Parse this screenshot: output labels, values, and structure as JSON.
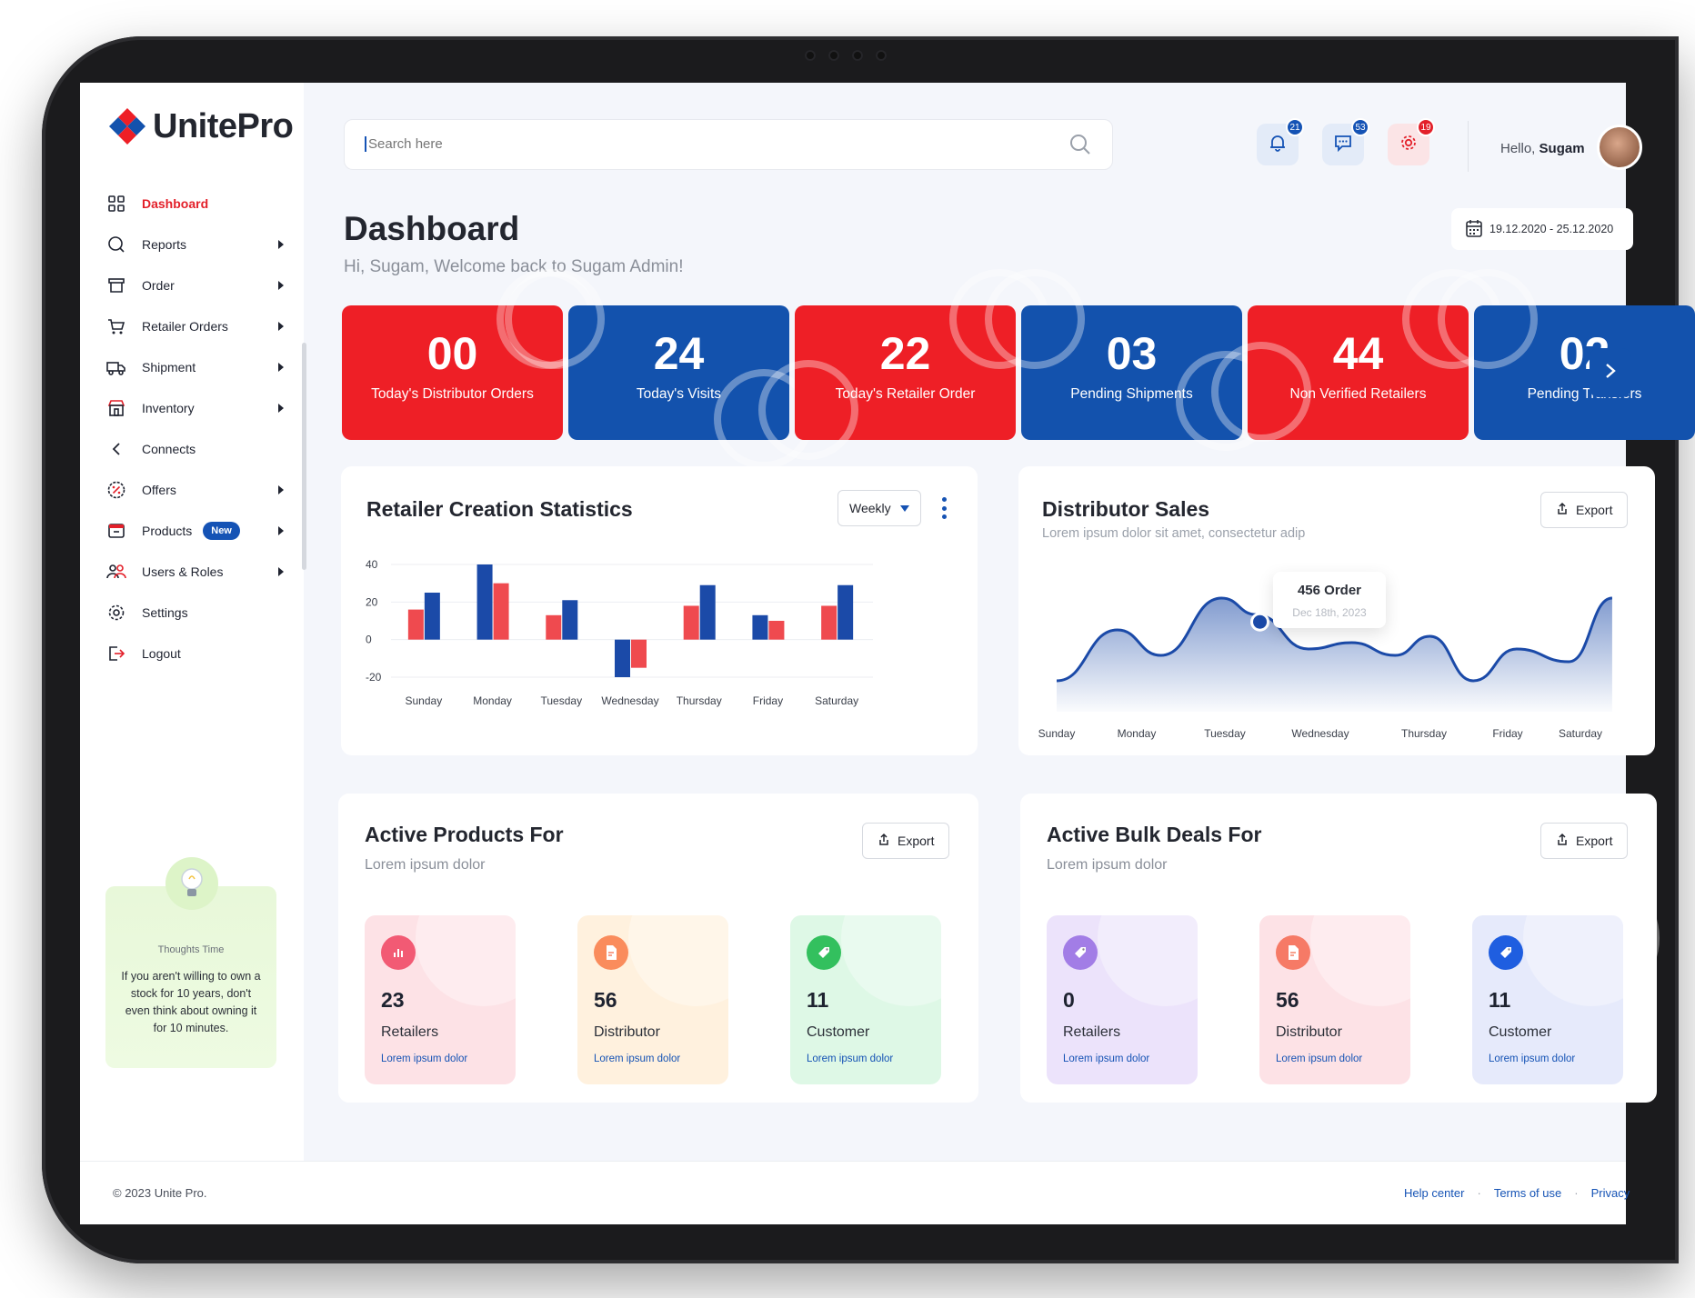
{
  "brand": {
    "name": "UnitePro"
  },
  "sidebar": {
    "items": [
      {
        "label": "Dashboard",
        "icon": "grid-icon",
        "active": true,
        "submenu": false
      },
      {
        "label": "Reports",
        "icon": "search-icon",
        "submenu": true
      },
      {
        "label": "Order",
        "icon": "archive-box-icon",
        "submenu": true
      },
      {
        "label": "Retailer Orders",
        "icon": "cart-icon",
        "submenu": true
      },
      {
        "label": "Shipment",
        "icon": "truck-icon",
        "submenu": true
      },
      {
        "label": "Inventory",
        "icon": "store-icon",
        "submenu": true
      },
      {
        "label": "Connects",
        "icon": "chevron-left-icon",
        "submenu": false
      },
      {
        "label": "Offers",
        "icon": "percent-icon",
        "submenu": true
      },
      {
        "label": "Products",
        "icon": "product-box-icon",
        "submenu": true,
        "badge": "New"
      },
      {
        "label": "Users & Roles",
        "icon": "users-icon",
        "submenu": true
      },
      {
        "label": "Settings",
        "icon": "gear-icon",
        "submenu": false
      },
      {
        "label": "Logout",
        "icon": "logout-icon",
        "submenu": false
      }
    ],
    "thought": {
      "title": "Thoughts Time",
      "text": "If you aren't willing to own a stock for 10 years, don't even think about owning it for 10 minutes."
    }
  },
  "header": {
    "search_placeholder": "Search here",
    "notifications": [
      {
        "icon": "bell-icon",
        "count": "21",
        "badge_color": "#1553b5",
        "bg": "#e3ebf8"
      },
      {
        "icon": "chat-icon",
        "count": "53",
        "badge_color": "#1553b5",
        "bg": "#e3ebf8"
      },
      {
        "icon": "gear-icon",
        "count": "19",
        "badge_color": "#e3202a",
        "bg": "#fbe4e6"
      }
    ],
    "greeting": "Hello,",
    "user": "Sugam"
  },
  "page": {
    "title": "Dashboard",
    "subtitle": "Hi, Sugam, Welcome back  to Sugam Admin!",
    "date_range": "19.12.2020 - 25.12.2020"
  },
  "stat_cards": [
    {
      "value": "00",
      "label": "Today's Distributor Orders",
      "color": "red"
    },
    {
      "value": "24",
      "label": "Today's Visits",
      "color": "blue"
    },
    {
      "value": "22",
      "label": "Today's Retailer Order",
      "color": "red"
    },
    {
      "value": "03",
      "label": "Pending Shipments",
      "color": "blue"
    },
    {
      "value": "44",
      "label": "Non Verified Retailers",
      "color": "red"
    },
    {
      "value": "02",
      "label": "Pending Transfers",
      "color": "blue"
    }
  ],
  "retailer_stats": {
    "title": "Retailer Creation Statistics",
    "period": "Weekly"
  },
  "distributor_sales": {
    "title": "Distributor Sales",
    "subtitle": "Lorem ipsum dolor sit amet, consectetur adip",
    "export_label": "Export",
    "tooltip_value": "456 Order",
    "tooltip_date": "Dec 18th, 2023"
  },
  "chart_data": [
    {
      "type": "bar",
      "categories": [
        "Sunday",
        "Monday",
        "Tuesday",
        "Wednesday",
        "Thursday",
        "Friday",
        "Saturday"
      ],
      "series": [
        {
          "values": [
            25,
            40,
            21,
            -20,
            29,
            13,
            29
          ],
          "color": "#1b4aa8"
        },
        {
          "values": [
            16,
            30,
            13,
            -15,
            18,
            10,
            18
          ],
          "color": "#ef4a4f"
        }
      ],
      "series_order_by_category": [
        [
          "red",
          "blue"
        ],
        [
          "blue",
          "red"
        ],
        [
          "red",
          "blue"
        ],
        [
          "blue",
          "red"
        ],
        [
          "red",
          "blue"
        ],
        [
          "blue",
          "red"
        ],
        [
          "red",
          "blue"
        ]
      ],
      "yticks": [
        40,
        20,
        0,
        -20
      ],
      "ylim": [
        -20,
        40
      ],
      "grid": true
    },
    {
      "type": "area",
      "categories": [
        "Sunday",
        "Monday",
        "Tuesday",
        "Wednesday",
        "Thursday",
        "Friday",
        "Saturday"
      ],
      "x": [
        0,
        0.7,
        1.2,
        1.9,
        2.3,
        2.9,
        3.4,
        3.9,
        4.3,
        4.8,
        5.3,
        5.9,
        6.4
      ],
      "values": [
        10,
        50,
        30,
        75,
        62,
        35,
        40,
        30,
        45,
        10,
        35,
        25,
        75
      ],
      "highlight": {
        "index": 4,
        "label": "456 Order"
      },
      "color": "#1b4aa8",
      "ylim": [
        0,
        100
      ]
    }
  ],
  "active_products": {
    "title": "Active Products For",
    "subtitle": "Lorem ipsum dolor",
    "export_label": "Export",
    "cards": [
      {
        "value": "23",
        "label": "Retailers",
        "sub": "Lorem ipsum dolor",
        "bg": "#fde2e6",
        "icon_bg": "#f25a74",
        "icon": "bar-chart-icon"
      },
      {
        "value": "56",
        "label": "Distributor",
        "sub": "Lorem ipsum dolor",
        "bg": "#fff1de",
        "icon_bg": "#fa8c5c",
        "icon": "document-icon"
      },
      {
        "value": "11",
        "label": "Customer",
        "sub": "Lorem ipsum dolor",
        "bg": "#def8e6",
        "icon_bg": "#33c05e",
        "icon": "tag-icon"
      }
    ]
  },
  "active_bulk_deals": {
    "title": "Active Bulk Deals For",
    "subtitle": "Lorem ipsum dolor",
    "export_label": "Export",
    "cards": [
      {
        "value": "0",
        "label": "Retailers",
        "sub": "Lorem ipsum dolor",
        "bg": "#ece3fb",
        "icon_bg": "#a27de6",
        "icon": "tag-icon"
      },
      {
        "value": "56",
        "label": "Distributor",
        "sub": "Lorem ipsum dolor",
        "bg": "#fde2e6",
        "icon_bg": "#f67a66",
        "icon": "document-icon"
      },
      {
        "value": "11",
        "label": "Customer",
        "sub": "Lorem ipsum dolor",
        "bg": "#e6eafb",
        "icon_bg": "#1f5ee0",
        "icon": "tag-icon"
      }
    ]
  },
  "footer": {
    "copyright": "© 2023 Unite Pro.",
    "links": [
      "Help center",
      "Terms of use",
      "Privacy"
    ]
  },
  "colors": {
    "brand_red": "#ee1f26",
    "brand_blue": "#1352ad",
    "page_bg": "#f4f6fb"
  }
}
